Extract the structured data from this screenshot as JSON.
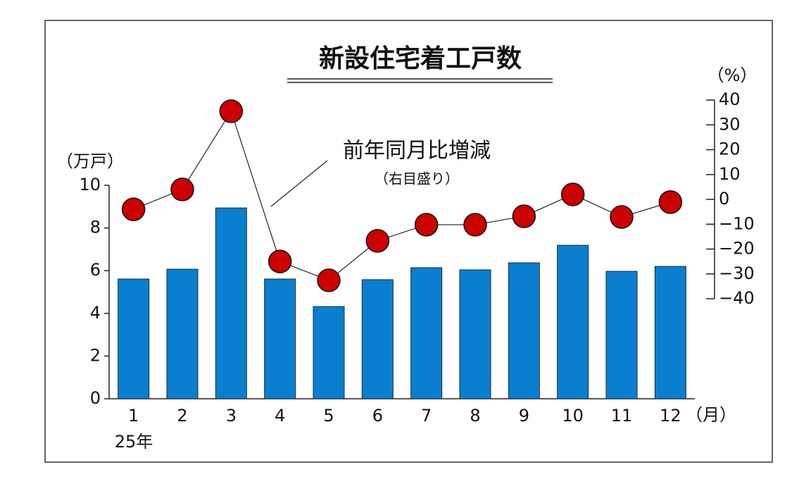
{
  "chart_data": {
    "type": "bar",
    "title": "新設住宅着工戸数",
    "categories": [
      "1",
      "2",
      "3",
      "4",
      "5",
      "6",
      "7",
      "8",
      "9",
      "10",
      "11",
      "12"
    ],
    "x_sublabel": "25年",
    "x_unit": "（月）",
    "y_unit": "（万戸）",
    "y2_unit": "（%）",
    "series": [
      {
        "type": "bar",
        "color": "#0a7fcf",
        "values": [
          5.61,
          6.07,
          8.94,
          5.61,
          4.32,
          5.58,
          6.14,
          6.04,
          6.37,
          7.19,
          5.97,
          6.2
        ]
      },
      {
        "type": "line",
        "name": "前年同月比増減",
        "axis": "y2",
        "color": "#cc0000",
        "values": [
          -4.0,
          4.0,
          35.5,
          -25.0,
          -32.6,
          -16.7,
          -10.2,
          -10.2,
          -6.8,
          2.0,
          -7.1,
          -1.1
        ]
      }
    ],
    "series_note": "（右目盛り）",
    "ylim": [
      0,
      10
    ],
    "yticks": [
      0,
      2,
      4,
      6,
      8,
      10
    ],
    "y2lim": [
      -40,
      40
    ],
    "y2ticks": [
      40,
      30,
      20,
      10,
      0,
      {
        "value": -10,
        "label": "−10"
      },
      {
        "value": -20,
        "label": "−20"
      },
      {
        "value": -30,
        "label": "−30"
      },
      {
        "value": -40,
        "label": "−40"
      }
    ]
  }
}
